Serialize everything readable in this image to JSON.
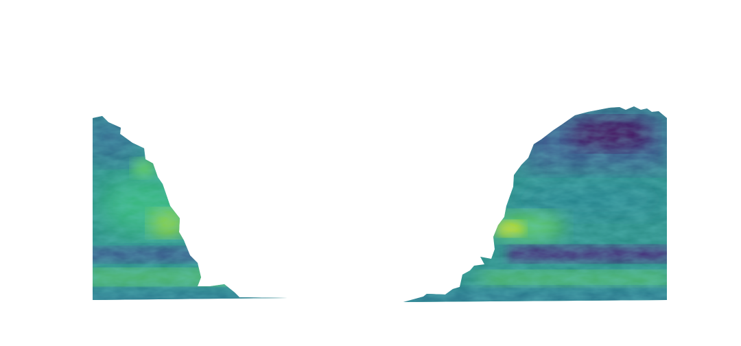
{
  "figure": {
    "background": "#ffffff",
    "colormap": {
      "name": "viridis",
      "stops": [
        "#440154",
        "#3b528b",
        "#21918c",
        "#5ec962",
        "#fde725"
      ]
    },
    "regions": [
      {
        "name": "left-lobe",
        "dominant_color": "#2a8c86",
        "features": [
          {
            "kind": "bright-patch",
            "color": "#a0da39"
          },
          {
            "kind": "dark-band",
            "color": "#3b4f8a"
          },
          {
            "kind": "light-band",
            "color": "#5ec962"
          }
        ]
      },
      {
        "name": "right-lobe",
        "dominant_color": "#2a8c86",
        "features": [
          {
            "kind": "dark-blob",
            "color": "#440154"
          },
          {
            "kind": "bright-patch",
            "color": "#d8e219"
          },
          {
            "kind": "dark-band",
            "color": "#482878"
          },
          {
            "kind": "light-band",
            "color": "#5ec962"
          }
        ]
      }
    ]
  }
}
